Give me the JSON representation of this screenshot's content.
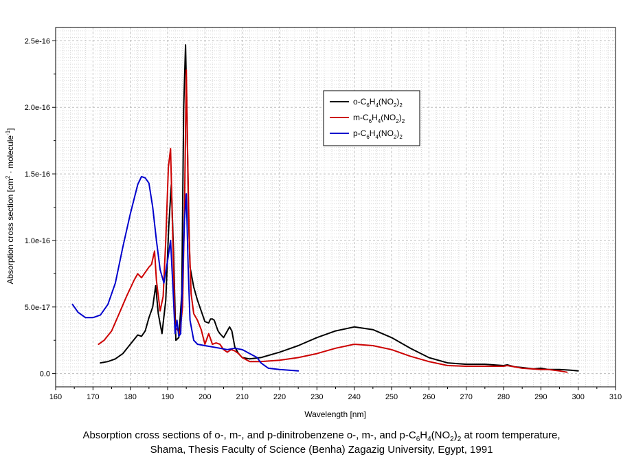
{
  "chart_data": {
    "type": "line",
    "title": "",
    "xlabel": "Wavelength [nm]",
    "ylabel": "Absorption cross section [cm² · molecule⁻¹]",
    "xlim": [
      160,
      310
    ],
    "ylim": [
      -1e-17,
      2.6e-16
    ],
    "grid": true,
    "x_ticks": [
      "160",
      "170",
      "180",
      "190",
      "200",
      "210",
      "220",
      "230",
      "240",
      "250",
      "260",
      "270",
      "280",
      "290",
      "300",
      "310"
    ],
    "y_ticks": [
      "0.0",
      "5.0e-17",
      "1.0e-16",
      "1.5e-16",
      "2.0e-16",
      "2.5e-16"
    ],
    "legend_position": "upper-middle",
    "series": [
      {
        "name": "o-C6H4(NO2)2",
        "legend": {
          "base": "o-C",
          "s1": "6",
          "m1": "H",
          "s2": "4",
          "m2": "(NO",
          "s3": "2",
          "m3": ")",
          "s4": "2"
        },
        "color": "#000000",
        "x": [
          172,
          174,
          176,
          178,
          180,
          182,
          183,
          184,
          185,
          186,
          186.8,
          187.5,
          188.5,
          189.5,
          190.3,
          191,
          191.6,
          192.2,
          193,
          193.8,
          194.3,
          194.8,
          195.2,
          195.6,
          196,
          197,
          198,
          199,
          200,
          201,
          201.5,
          202,
          202.5,
          203,
          203.5,
          204,
          205,
          206,
          206.6,
          207.2,
          208,
          209,
          210,
          212,
          215,
          220,
          225,
          230,
          235,
          240,
          245,
          250,
          255,
          260,
          265,
          270,
          275,
          280,
          281,
          283,
          285,
          288,
          290,
          292,
          295,
          298,
          300
        ],
        "y": [
          8e-18,
          9e-18,
          1.1e-17,
          1.5e-17,
          2.2e-17,
          2.9e-17,
          2.8e-17,
          3.2e-17,
          4.2e-17,
          5e-17,
          6.6e-17,
          4.5e-17,
          3e-17,
          5.5e-17,
          1.1e-16,
          1.42e-16,
          9e-17,
          2.5e-17,
          2.7e-17,
          6e-17,
          2e-16,
          2.47e-16,
          1.9e-16,
          1.2e-16,
          8e-17,
          6.5e-17,
          5.5e-17,
          4.7e-17,
          3.9e-17,
          3.8e-17,
          4.1e-17,
          4.1e-17,
          4e-17,
          3.6e-17,
          3.2e-17,
          3e-17,
          2.7e-17,
          3.2e-17,
          3.5e-17,
          3.2e-17,
          2e-17,
          1.5e-17,
          1.2e-17,
          1.1e-17,
          1.2e-17,
          1.6e-17,
          2.1e-17,
          2.7e-17,
          3.2e-17,
          3.5e-17,
          3.3e-17,
          2.7e-17,
          1.9e-17,
          1.2e-17,
          8e-18,
          7e-18,
          7e-18,
          6e-18,
          6.5e-18,
          5e-18,
          4.5e-18,
          3.5e-18,
          4e-18,
          3e-18,
          3e-18,
          2.5e-18,
          2e-18
        ]
      },
      {
        "name": "m-C6H4(NO2)2",
        "legend": {
          "base": "m-C",
          "s1": "6",
          "m1": "H",
          "s2": "4",
          "m2": "(NO",
          "s3": "2",
          "m3": ")",
          "s4": "2"
        },
        "color": "#cc0000",
        "x": [
          171.5,
          173,
          175,
          177,
          179,
          181,
          182,
          183,
          184,
          185,
          185.7,
          186.5,
          187,
          188,
          188.8,
          189.5,
          190.2,
          190.8,
          191.4,
          192,
          192.6,
          193.3,
          194,
          194.5,
          195,
          195.4,
          195.8,
          196.3,
          197,
          198,
          199,
          200,
          201,
          202,
          203,
          204,
          205,
          206,
          207,
          208,
          209,
          210,
          212,
          215,
          220,
          225,
          230,
          235,
          240,
          245,
          250,
          255,
          260,
          265,
          270,
          275,
          280,
          281,
          285,
          290,
          292,
          295,
          297
        ],
        "y": [
          2.2e-17,
          2.5e-17,
          3.2e-17,
          4.5e-17,
          5.8e-17,
          7e-17,
          7.5e-17,
          7.2e-17,
          7.6e-17,
          8e-17,
          8.2e-17,
          9.2e-17,
          7e-17,
          4.7e-17,
          5.8e-17,
          1e-16,
          1.55e-16,
          1.69e-16,
          1e-16,
          3.5e-17,
          3.3e-17,
          3e-17,
          5e-17,
          1.2e-16,
          2.28e-16,
          1.6e-16,
          1e-16,
          6e-17,
          4.5e-17,
          4e-17,
          3.3e-17,
          2.2e-17,
          3e-17,
          2.2e-17,
          2.3e-17,
          2.2e-17,
          1.8e-17,
          1.6e-17,
          1.8e-17,
          1.7e-17,
          1.5e-17,
          1.2e-17,
          9e-18,
          9e-18,
          1e-17,
          1.2e-17,
          1.5e-17,
          1.9e-17,
          2.2e-17,
          2.1e-17,
          1.8e-17,
          1.3e-17,
          9e-18,
          6e-18,
          5.5e-18,
          5.5e-18,
          5.5e-18,
          6e-18,
          4e-18,
          3e-18,
          3e-18,
          2e-18,
          1e-18
        ]
      },
      {
        "name": "p-C6H4(NO2)2",
        "legend": {
          "base": "p-C",
          "s1": "6",
          "m1": "H",
          "s2": "4",
          "m2": "(NO",
          "s3": "2",
          "m3": ")",
          "s4": "2"
        },
        "color": "#0000cc",
        "x": [
          164.5,
          166,
          168,
          170,
          172,
          174,
          176,
          178,
          180,
          182,
          183,
          184,
          185,
          186,
          187,
          188,
          189,
          190,
          190.8,
          191.5,
          192,
          192.5,
          193,
          193.5,
          194,
          194.5,
          195,
          195.5,
          196,
          197,
          198,
          200,
          202,
          204,
          206,
          208,
          210,
          212,
          214,
          215,
          217,
          220,
          225
        ],
        "y": [
          5.2e-17,
          4.6e-17,
          4.2e-17,
          4.2e-17,
          4.4e-17,
          5.2e-17,
          6.8e-17,
          9.5e-17,
          1.2e-16,
          1.42e-16,
          1.48e-16,
          1.47e-16,
          1.43e-16,
          1.25e-16,
          1e-16,
          7.8e-17,
          6.8e-17,
          8.5e-17,
          1e-16,
          6e-17,
          3e-17,
          4e-17,
          2.8e-17,
          3e-17,
          7e-17,
          1.15e-16,
          1.35e-16,
          8e-17,
          4e-17,
          2.5e-17,
          2.2e-17,
          2.1e-17,
          2e-17,
          1.9e-17,
          1.8e-17,
          1.9e-17,
          1.8e-17,
          1.5e-17,
          1.2e-17,
          8e-18,
          4e-18,
          3e-18,
          2e-18
        ]
      }
    ]
  },
  "caption": {
    "line1": {
      "prefix": "Absorption cross sections of o-, m-, and p-dinitrobenzene o-, m-, and p-C",
      "s1": "6",
      "m1": "H",
      "s2": "4",
      "m2": "(NO",
      "s3": "2",
      "m3": ")",
      "s4": "2",
      "suffix": " at room temperature,"
    },
    "line2": "Shama, Thesis Faculty of Science (Benha) Zagazig University, Egypt, 1991"
  }
}
